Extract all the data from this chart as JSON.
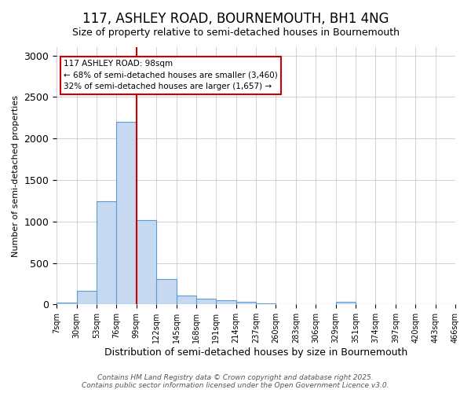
{
  "title": "117, ASHLEY ROAD, BOURNEMOUTH, BH1 4NG",
  "subtitle": "Size of property relative to semi-detached houses in Bournemouth",
  "xlabel": "Distribution of semi-detached houses by size in Bournemouth",
  "ylabel": "Number of semi-detached properties",
  "bin_labels": [
    "7sqm",
    "30sqm",
    "53sqm",
    "76sqm",
    "99sqm",
    "122sqm",
    "145sqm",
    "168sqm",
    "191sqm",
    "214sqm",
    "237sqm",
    "260sqm",
    "283sqm",
    "306sqm",
    "329sqm",
    "351sqm",
    "374sqm",
    "397sqm",
    "420sqm",
    "443sqm",
    "466sqm"
  ],
  "bar_values": [
    20,
    160,
    1240,
    2200,
    1020,
    310,
    105,
    65,
    55,
    35,
    15,
    5,
    0,
    0,
    35,
    0,
    0,
    0,
    0,
    0
  ],
  "bar_color": "#c6d9f0",
  "bar_edge_color": "#5b9bd5",
  "property_line_x": 4,
  "property_line_color": "#cc0000",
  "annotation_text": "117 ASHLEY ROAD: 98sqm\n← 68% of semi-detached houses are smaller (3,460)\n32% of semi-detached houses are larger (1,657) →",
  "annotation_box_color": "#ffffff",
  "annotation_box_edge": "#cc0000",
  "ylim": [
    0,
    3100
  ],
  "yticks": [
    0,
    500,
    1000,
    1500,
    2000,
    2500,
    3000
  ],
  "footer": "Contains HM Land Registry data © Crown copyright and database right 2025.\nContains public sector information licensed under the Open Government Licence v3.0.",
  "background_color": "#ffffff",
  "grid_color": "#c0c0c0"
}
